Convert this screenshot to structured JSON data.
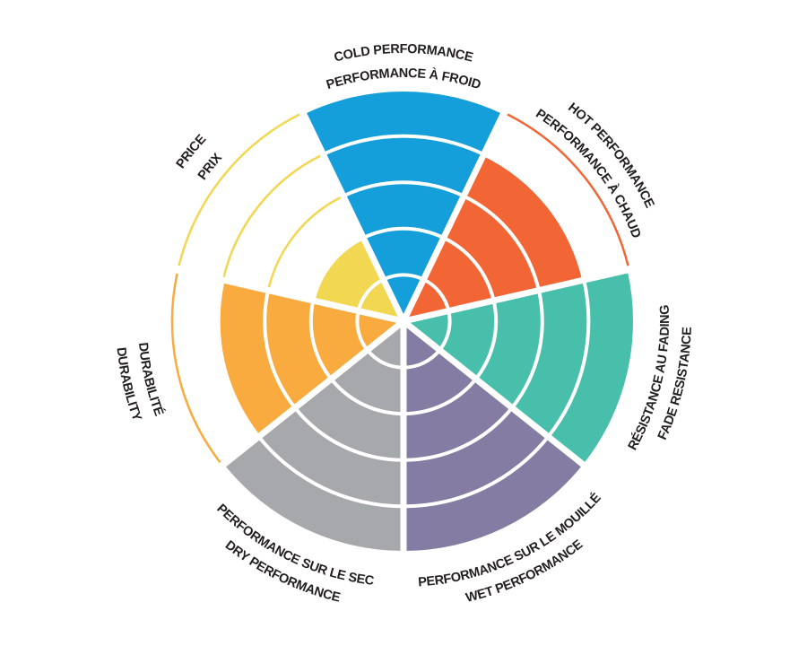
{
  "chart_data": {
    "type": "polar-bar",
    "scale_max": 5,
    "grid": true,
    "categories": [
      {
        "key": "cold",
        "label_en": "COLD PERFORMANCE",
        "label_fr": "PERFORMANCE À FROID",
        "lines": [
          "COLD PERFORMANCE",
          "PERFORMANCE À FROID"
        ],
        "value": 5,
        "color": "#159fda"
      },
      {
        "key": "hot",
        "label_en": "HOT PERFORMANCE",
        "label_fr": "PERFORMANCE À CHAUD",
        "lines": [
          "HOT PERFORMANCE",
          "PERFORMANCE À CHAUD"
        ],
        "value": 4,
        "color": "#f26636"
      },
      {
        "key": "fade",
        "label_en": "FADE RESISTANCE",
        "label_fr": "RÉSISTANCE AU FADING",
        "lines": [
          "RÉSISTANCE AU FADING",
          "FADE RESISTANCE"
        ],
        "value": 5,
        "color": "#48bfab"
      },
      {
        "key": "wet",
        "label_en": "WET PERFORMANCE",
        "label_fr": "PERFORMANCE SUR LE MOUILLÉ",
        "lines": [
          "PERFORMANCE SUR LE MOUILLÉ",
          "WET PERFORMANCE"
        ],
        "value": 5,
        "color": "#847ca2"
      },
      {
        "key": "dry",
        "label_en": "DRY PERFORMANCE",
        "label_fr": "PERFORMANCE SUR LE SEC",
        "lines": [
          "PERFORMANCE SUR LE SEC",
          "DRY PERFORMANCE"
        ],
        "value": 5,
        "color": "#a7a8ab"
      },
      {
        "key": "durability",
        "label_en": "DURABILITY",
        "label_fr": "DURABILITÉ",
        "lines": [
          "DURABILITÉ",
          "DURABILITY"
        ],
        "value": 4,
        "color": "#f9ab3f"
      },
      {
        "key": "price",
        "label_en": "PRICE",
        "label_fr": "PRIX",
        "lines": [
          "PRICE",
          "PRIX"
        ],
        "value": 2,
        "color": "#f2d752"
      }
    ]
  }
}
